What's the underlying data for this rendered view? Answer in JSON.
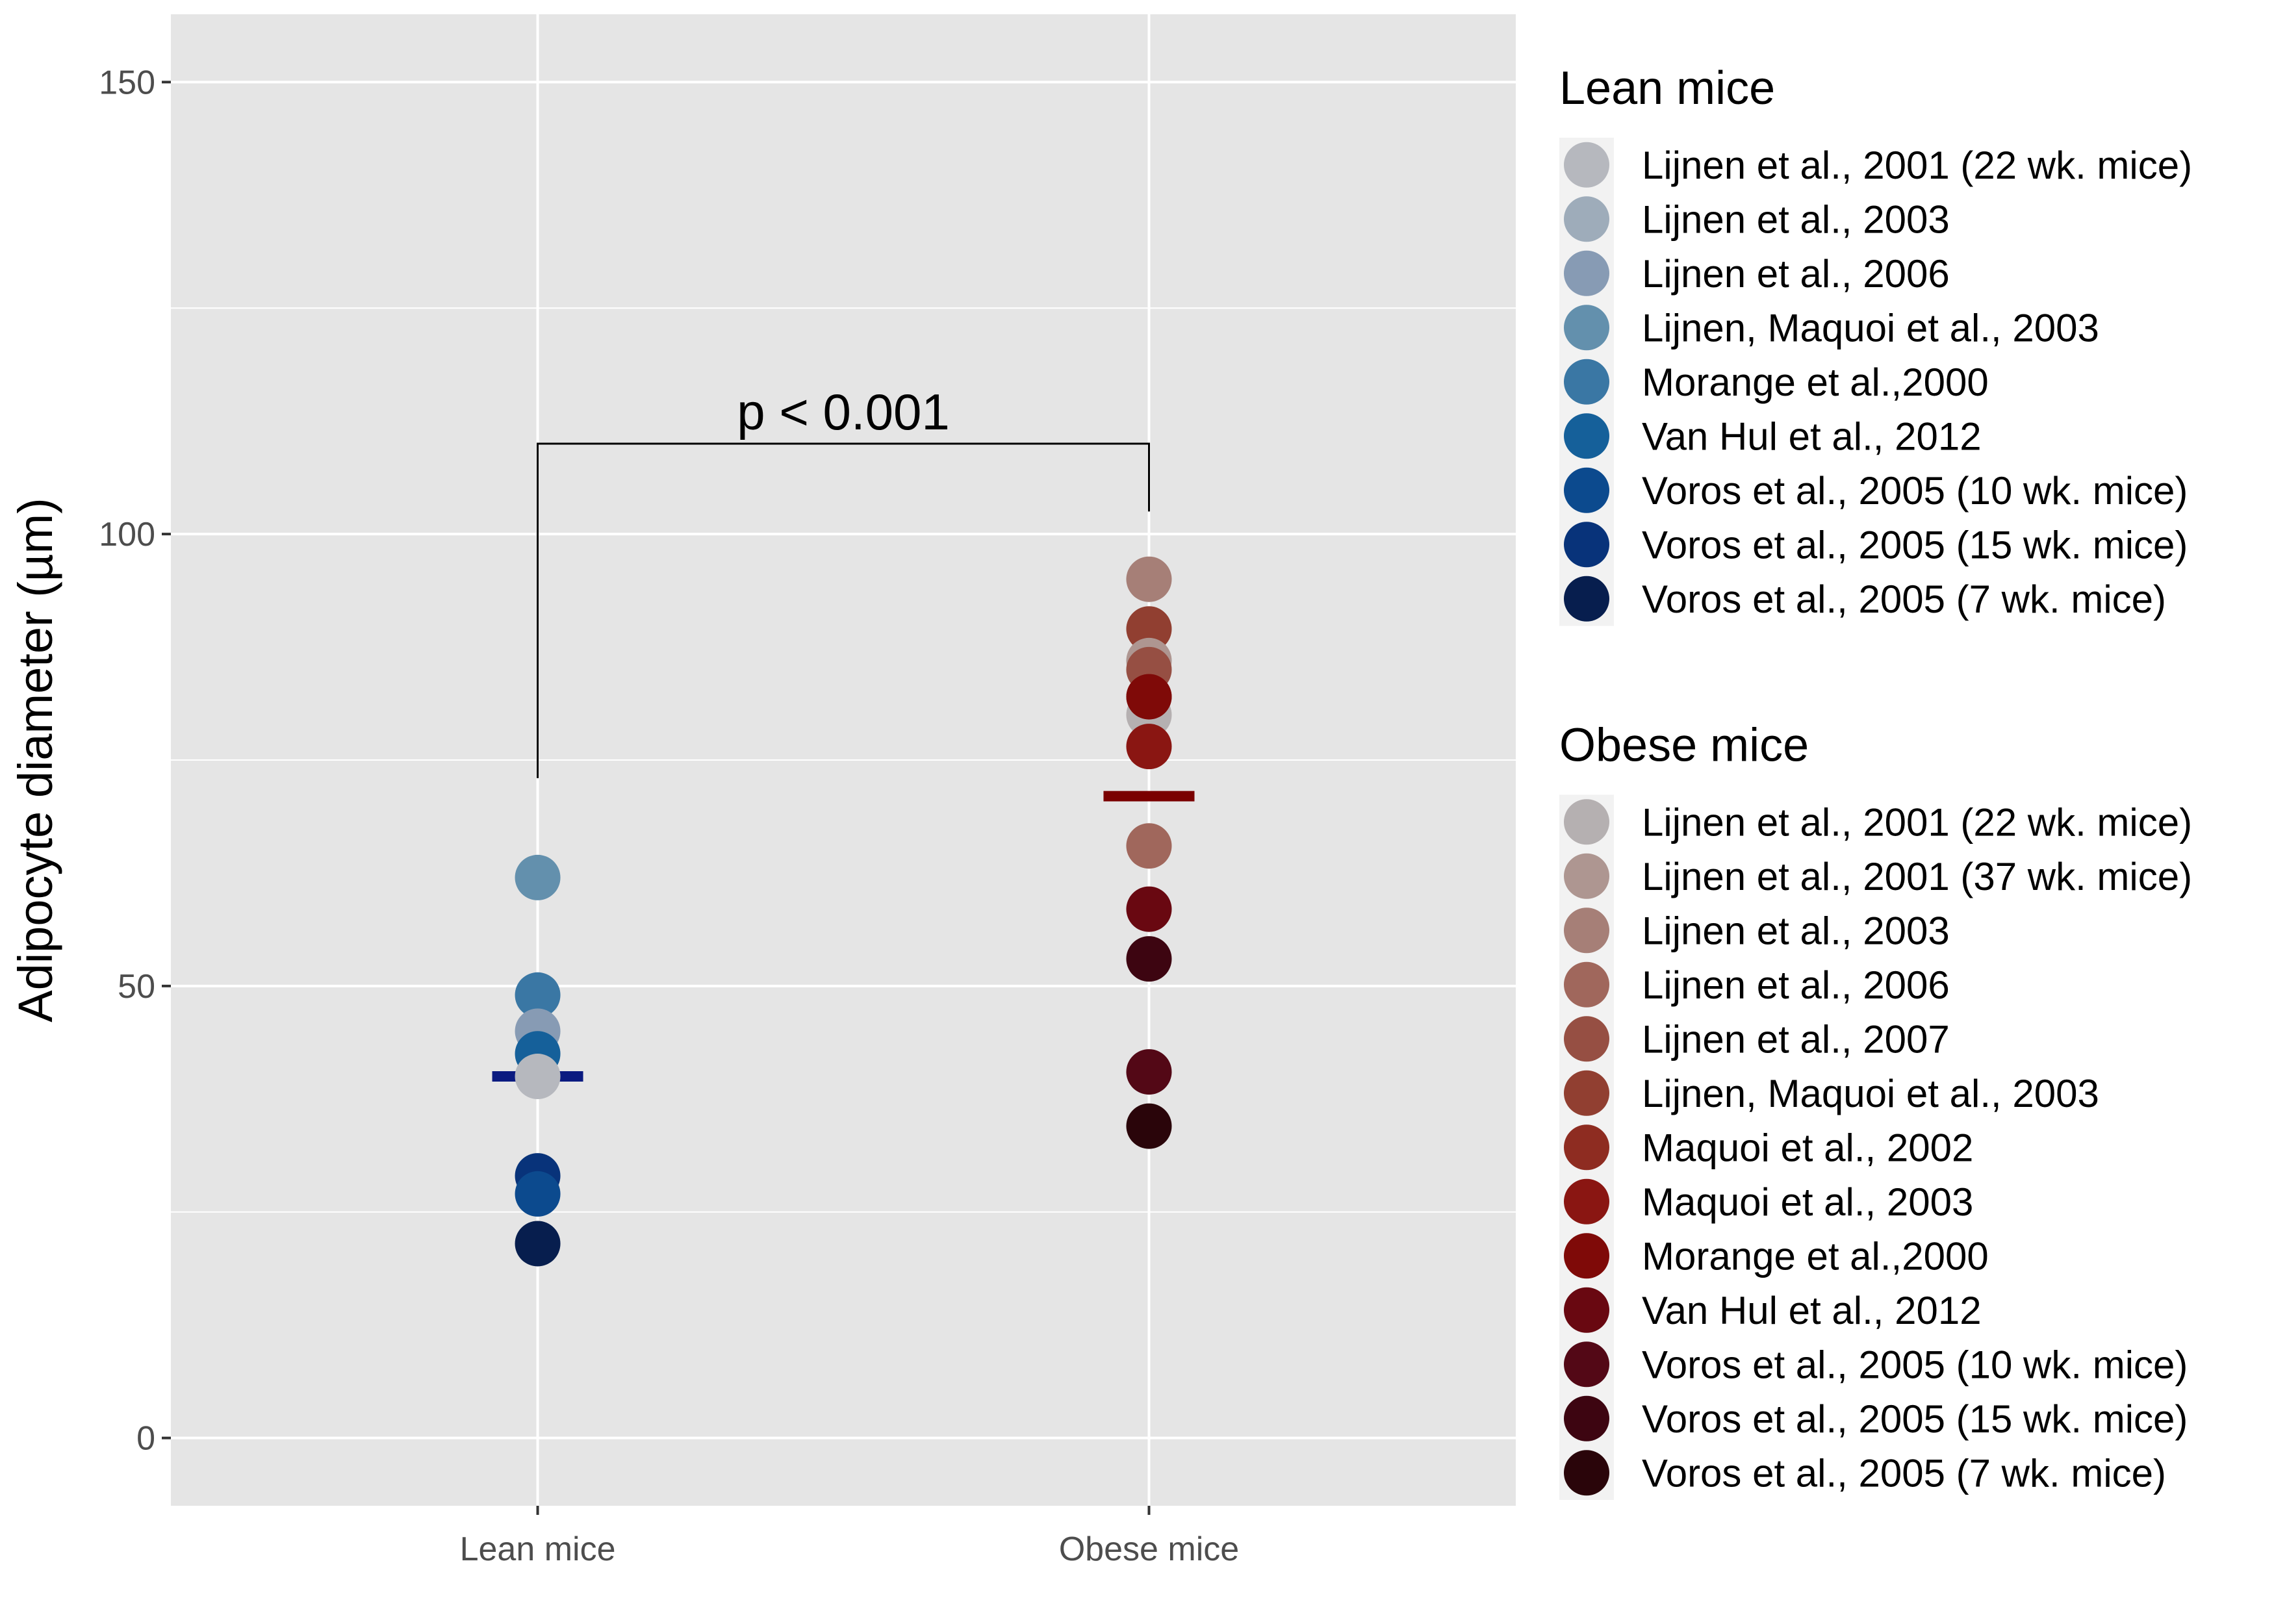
{
  "chart_data": {
    "type": "scatter",
    "title": "",
    "xlabel": "",
    "ylabel": "Adipocyte diameter (µm)",
    "categories": [
      "Lean mice",
      "Obese mice"
    ],
    "ylim": [
      -7.5,
      157.5
    ],
    "yticks": [
      0,
      50,
      100,
      150
    ],
    "grid": true,
    "legend_position": "right",
    "annotation": {
      "text": "p < 0.001",
      "groups": [
        "Lean mice",
        "Obese mice"
      ],
      "bracket_top": 110,
      "left_end": 73,
      "right_end": 102.5
    },
    "means": [
      {
        "category": "Lean mice",
        "value": 40.0,
        "color": "#0a1a80"
      },
      {
        "category": "Obese mice",
        "value": 71.0,
        "color": "#7a0000"
      }
    ],
    "legends": [
      {
        "title": "Lean mice",
        "entries": [
          {
            "label": "Lijnen et al., 2001 (22 wk. mice)",
            "color": "#b6b8be"
          },
          {
            "label": "Lijnen et al., 2003",
            "color": "#9eacba"
          },
          {
            "label": "Lijnen et al., 2006",
            "color": "#879bb4"
          },
          {
            "label": "Lijnen, Maquoi et al., 2003",
            "color": "#6390ad"
          },
          {
            "label": "Morange et al.,2000",
            "color": "#3a77a4"
          },
          {
            "label": "Van Hul et al., 2012",
            "color": "#15609a"
          },
          {
            "label": "Voros et al., 2005 (10 wk. mice)",
            "color": "#0c4a8e"
          },
          {
            "label": "Voros et al., 2005 (15 wk. mice)",
            "color": "#08337a"
          },
          {
            "label": "Voros et al., 2005 (7 wk. mice)",
            "color": "#071e4e"
          }
        ]
      },
      {
        "title": "Obese mice",
        "entries": [
          {
            "label": "Lijnen et al., 2001 (22 wk. mice)",
            "color": "#b5b0b1"
          },
          {
            "label": "Lijnen et al., 2001 (37 wk. mice)",
            "color": "#ae9691"
          },
          {
            "label": "Lijnen et al., 2003",
            "color": "#a67f77"
          },
          {
            "label": "Lijnen et al., 2006",
            "color": "#a0675c"
          },
          {
            "label": "Lijnen et al., 2007",
            "color": "#964f43"
          },
          {
            "label": "Lijnen, Maquoi et al., 2003",
            "color": "#913f31"
          },
          {
            "label": "Maquoi et al., 2002",
            "color": "#8e2c21"
          },
          {
            "label": "Maquoi et al., 2003",
            "color": "#8a1612"
          },
          {
            "label": "Morange et al.,2000",
            "color": "#7f0a08"
          },
          {
            "label": "Van Hul et al., 2012",
            "color": "#690811"
          },
          {
            "label": "Voros et al., 2005 (10 wk. mice)",
            "color": "#530816"
          },
          {
            "label": "Voros et al., 2005 (15 wk. mice)",
            "color": "#3d0511"
          },
          {
            "label": "Voros et al., 2005 (7 wk. mice)",
            "color": "#2a050a"
          }
        ]
      }
    ],
    "points": [
      {
        "category": "Lean mice",
        "y": 62,
        "color": "#6390ad"
      },
      {
        "category": "Lean mice",
        "y": 49,
        "color": "#3a77a4"
      },
      {
        "category": "Lean mice",
        "y": 45,
        "color": "#879bb4"
      },
      {
        "category": "Lean mice",
        "y": 42.5,
        "color": "#15609a"
      },
      {
        "category": "Lean mice",
        "y": 40,
        "color": "#b6b8be"
      },
      {
        "category": "Lean mice",
        "y": 29,
        "color": "#08337a"
      },
      {
        "category": "Lean mice",
        "y": 27,
        "color": "#0c4a8e"
      },
      {
        "category": "Lean mice",
        "y": 21.5,
        "color": "#071e4e"
      },
      {
        "category": "Obese mice",
        "y": 95,
        "color": "#a67f77"
      },
      {
        "category": "Obese mice",
        "y": 89.5,
        "color": "#913f31"
      },
      {
        "category": "Obese mice",
        "y": 86,
        "color": "#ae9691"
      },
      {
        "category": "Obese mice",
        "y": 85,
        "color": "#964f43"
      },
      {
        "category": "Obese mice",
        "y": 82,
        "color": "#8e2c21"
      },
      {
        "category": "Obese mice",
        "y": 80,
        "color": "#b5b0b1"
      },
      {
        "category": "Obese mice",
        "y": 82,
        "color": "#7f0a08"
      },
      {
        "category": "Obese mice",
        "y": 76.5,
        "color": "#8a1612"
      },
      {
        "category": "Obese mice",
        "y": 65.5,
        "color": "#a0675c"
      },
      {
        "category": "Obese mice",
        "y": 58.5,
        "color": "#690811"
      },
      {
        "category": "Obese mice",
        "y": 53,
        "color": "#3d0511"
      },
      {
        "category": "Obese mice",
        "y": 40.5,
        "color": "#530816"
      },
      {
        "category": "Obese mice",
        "y": 34.5,
        "color": "#2a050a"
      }
    ]
  }
}
